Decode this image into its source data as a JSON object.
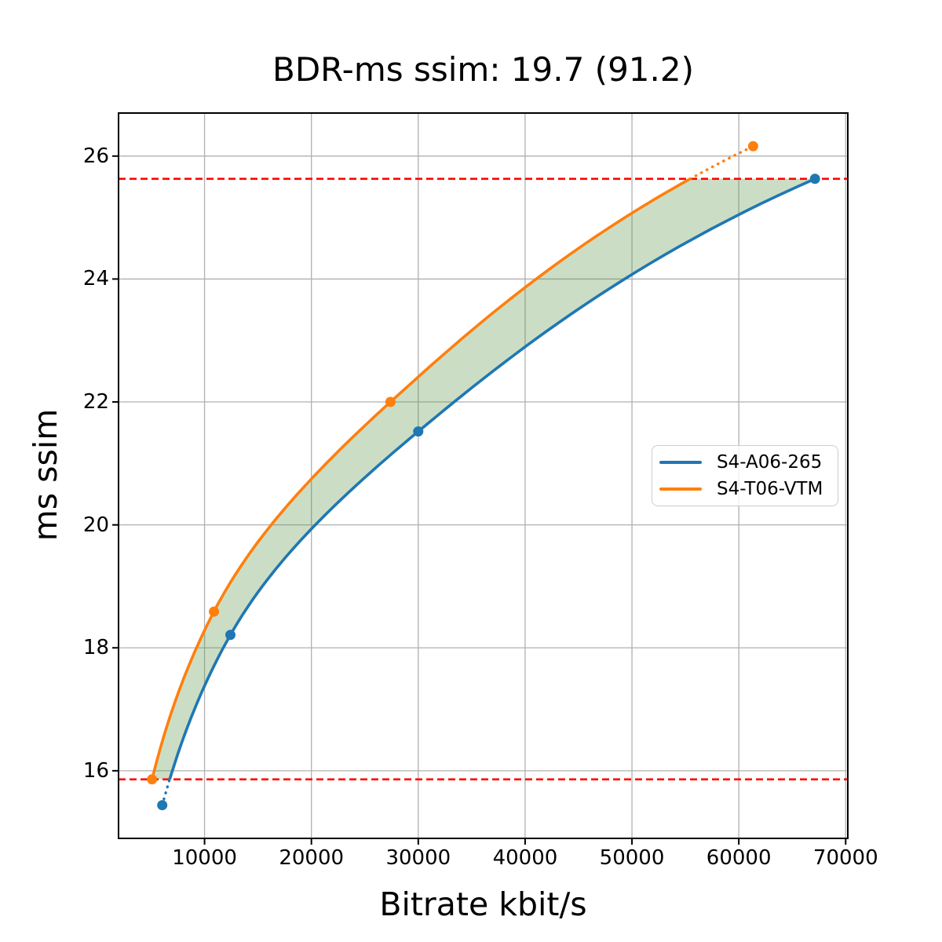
{
  "chart_data": {
    "type": "line",
    "title": "BDR-ms ssim: 19.7 (91.2)",
    "xlabel": "Bitrate kbit/s",
    "ylabel": "ms ssim",
    "xlim": [
      1950,
      70200
    ],
    "ylim": [
      14.9,
      26.7
    ],
    "x_ticks": [
      10000,
      20000,
      30000,
      40000,
      50000,
      60000,
      70000
    ],
    "y_ticks": [
      16,
      18,
      20,
      22,
      24,
      26
    ],
    "grid": true,
    "grid_color": "#b0b0b0",
    "frame_color": "#000000",
    "legend_position": "right-center",
    "series": [
      {
        "name": "S4-A06-265",
        "color": "#1f77b4",
        "points": [
          [
            6040,
            15.44
          ],
          [
            12420,
            18.21
          ],
          [
            30000,
            21.52
          ],
          [
            67130,
            25.63
          ]
        ]
      },
      {
        "name": "S4-T06-VTM",
        "color": "#ff7f0e",
        "points": [
          [
            5090,
            15.86
          ],
          [
            10880,
            18.59
          ],
          [
            27400,
            22.0
          ],
          [
            61340,
            26.16
          ]
        ]
      }
    ],
    "overlap_quality_range": [
      15.86,
      25.63
    ],
    "reference_lines": {
      "color": "#ff0000",
      "style": "dashed",
      "y_values": [
        15.86,
        25.63
      ]
    },
    "shaded_region": {
      "between": [
        "S4-T06-VTM",
        "S4-A06-265"
      ],
      "fill": "rgba(82,145,62,0.30)"
    }
  }
}
